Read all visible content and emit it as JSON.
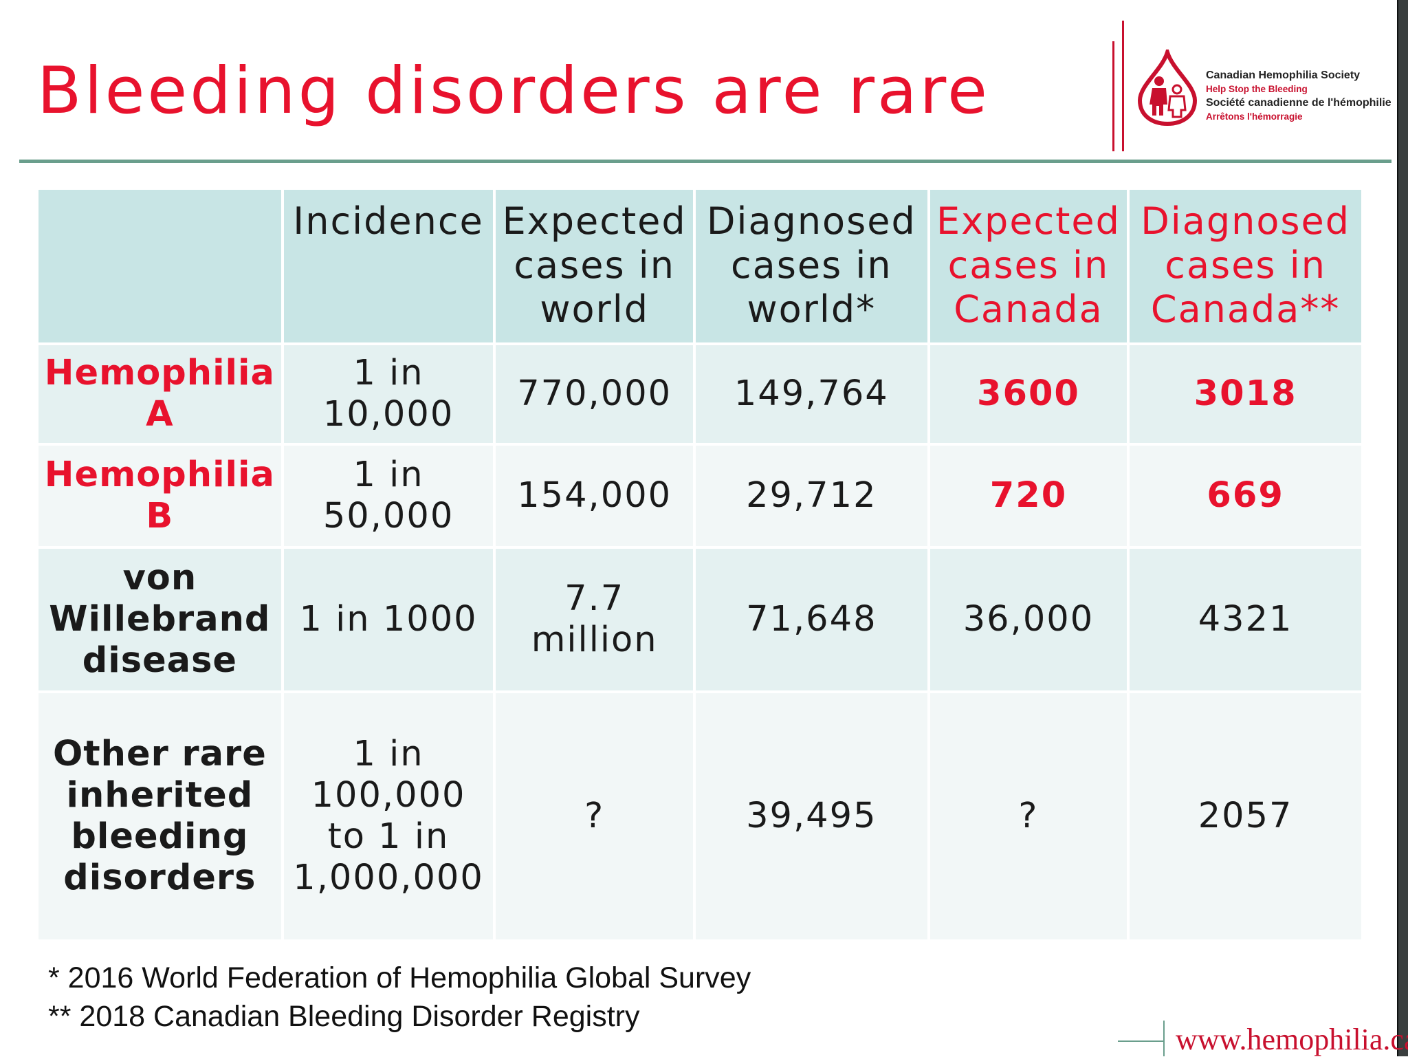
{
  "title": "Bleeding disorders are rare",
  "logo": {
    "name": "Canadian Hemophilia Society",
    "slogan": "Help Stop the Bleeding",
    "name_fr": "Société canadienne de l'hémophilie",
    "slogan_fr": "Arrêtons l'hémorragie",
    "brand_color": "#c8102e"
  },
  "table": {
    "headers": [
      "",
      "Incidence",
      "Expected cases in world",
      "Diagnosed cases in world*",
      "Expected cases in Canada",
      "Diagnosed cases in Canada**"
    ],
    "rows": [
      {
        "label": "Hemophilia A",
        "incidence": "1 in 10,000",
        "expected_world": "770,000",
        "diagnosed_world": "149,764",
        "expected_canada": "3600",
        "diagnosed_canada": "3018"
      },
      {
        "label": "Hemophilia B",
        "incidence": "1 in 50,000",
        "expected_world": "154,000",
        "diagnosed_world": "29,712",
        "expected_canada": "720",
        "diagnosed_canada": "669"
      },
      {
        "label": "von Willebrand disease",
        "incidence": "1 in 1000",
        "expected_world": "7.7 million",
        "diagnosed_world": "71,648",
        "expected_canada": "36,000",
        "diagnosed_canada": "4321"
      },
      {
        "label": "Other rare inherited bleeding disorders",
        "incidence": "1 in 100,000 to 1 in 1,000,000",
        "expected_world": "?",
        "diagnosed_world": "39,495",
        "expected_canada": "?",
        "diagnosed_canada": "2057"
      }
    ]
  },
  "footnotes": [
    "* 2016 World Federation of Hemophilia Global Survey",
    "** 2018 Canadian Bleeding Disorder Registry"
  ],
  "website": "www.hemophilia.ca",
  "colors": {
    "title": "#e8122d",
    "header_bg": "#c8e5e5",
    "row_bg_a": "#e4f1f1",
    "row_bg_b": "#f2f7f7",
    "rule": "#6a9e8c"
  }
}
